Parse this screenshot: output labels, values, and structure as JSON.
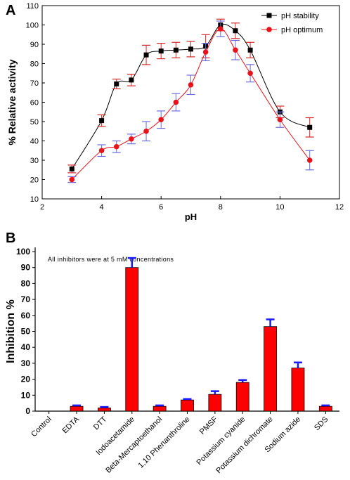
{
  "panels": {
    "a_label": "A",
    "b_label": "B"
  },
  "chart_data": [
    {
      "type": "line",
      "xlabel": "pH",
      "ylabel": "% Relative activity",
      "xlim": [
        2,
        12
      ],
      "ylim": [
        10,
        110
      ],
      "xticks": [
        2,
        4,
        6,
        8,
        10,
        12
      ],
      "yticks": [
        10,
        20,
        30,
        40,
        50,
        60,
        70,
        80,
        90,
        100,
        110
      ],
      "legend_position": "top-right",
      "series": [
        {
          "name": "pH stability",
          "color": "#000000",
          "marker": "square",
          "errorbar_color": "#d62728",
          "x": [
            3,
            4,
            4.5,
            5,
            5.5,
            6,
            6.5,
            7,
            7.5,
            8,
            8.5,
            9,
            10,
            11
          ],
          "y": [
            25.5,
            50.5,
            69.5,
            71.5,
            84.5,
            86.5,
            87,
            87.5,
            89,
            100,
            97,
            87,
            55,
            47
          ],
          "err": [
            2,
            3,
            2.5,
            3,
            5,
            4,
            4,
            4,
            6,
            3,
            4,
            4,
            3,
            5
          ]
        },
        {
          "name": "pH optimum",
          "color": "#e8121b",
          "marker": "circle",
          "errorbar_color": "#6a6adc",
          "x": [
            3,
            4,
            4.5,
            5,
            5.5,
            6,
            6.5,
            7,
            7.5,
            8,
            8.5,
            9,
            10,
            11
          ],
          "y": [
            20,
            35,
            37,
            41,
            45,
            51,
            60,
            69,
            86,
            98,
            87,
            75,
            51,
            30
          ],
          "err": [
            1.5,
            3,
            3,
            2.5,
            5,
            4.5,
            4.5,
            5,
            4.5,
            4,
            5,
            4.5,
            4,
            5
          ]
        }
      ]
    },
    {
      "type": "bar",
      "xlabel": "",
      "ylabel": "Inhibition %",
      "annotation": "All inhibitors were at 5 mM concentrations",
      "ylim": [
        0,
        100
      ],
      "yticks": [
        0,
        10,
        20,
        30,
        40,
        50,
        60,
        70,
        80,
        90,
        100
      ],
      "bar_color": "#ff0000",
      "errorbar_color": "#1a1aff",
      "categories": [
        "Control",
        "EDTA",
        "DTT",
        "Iodoacetamide",
        "Beta-Mercaptoethanol",
        "1,10 Phenanthroline",
        "PMSF",
        "Potassium cyanide",
        "Potassium dichromate",
        "Sodium azide",
        "SDS"
      ],
      "values": [
        0,
        3,
        2,
        90,
        3,
        7,
        10.5,
        18,
        53,
        27,
        3
      ],
      "err": [
        0,
        0.6,
        0.6,
        6,
        0.6,
        0.6,
        2,
        1.5,
        4.5,
        3.5,
        0.6
      ]
    }
  ]
}
